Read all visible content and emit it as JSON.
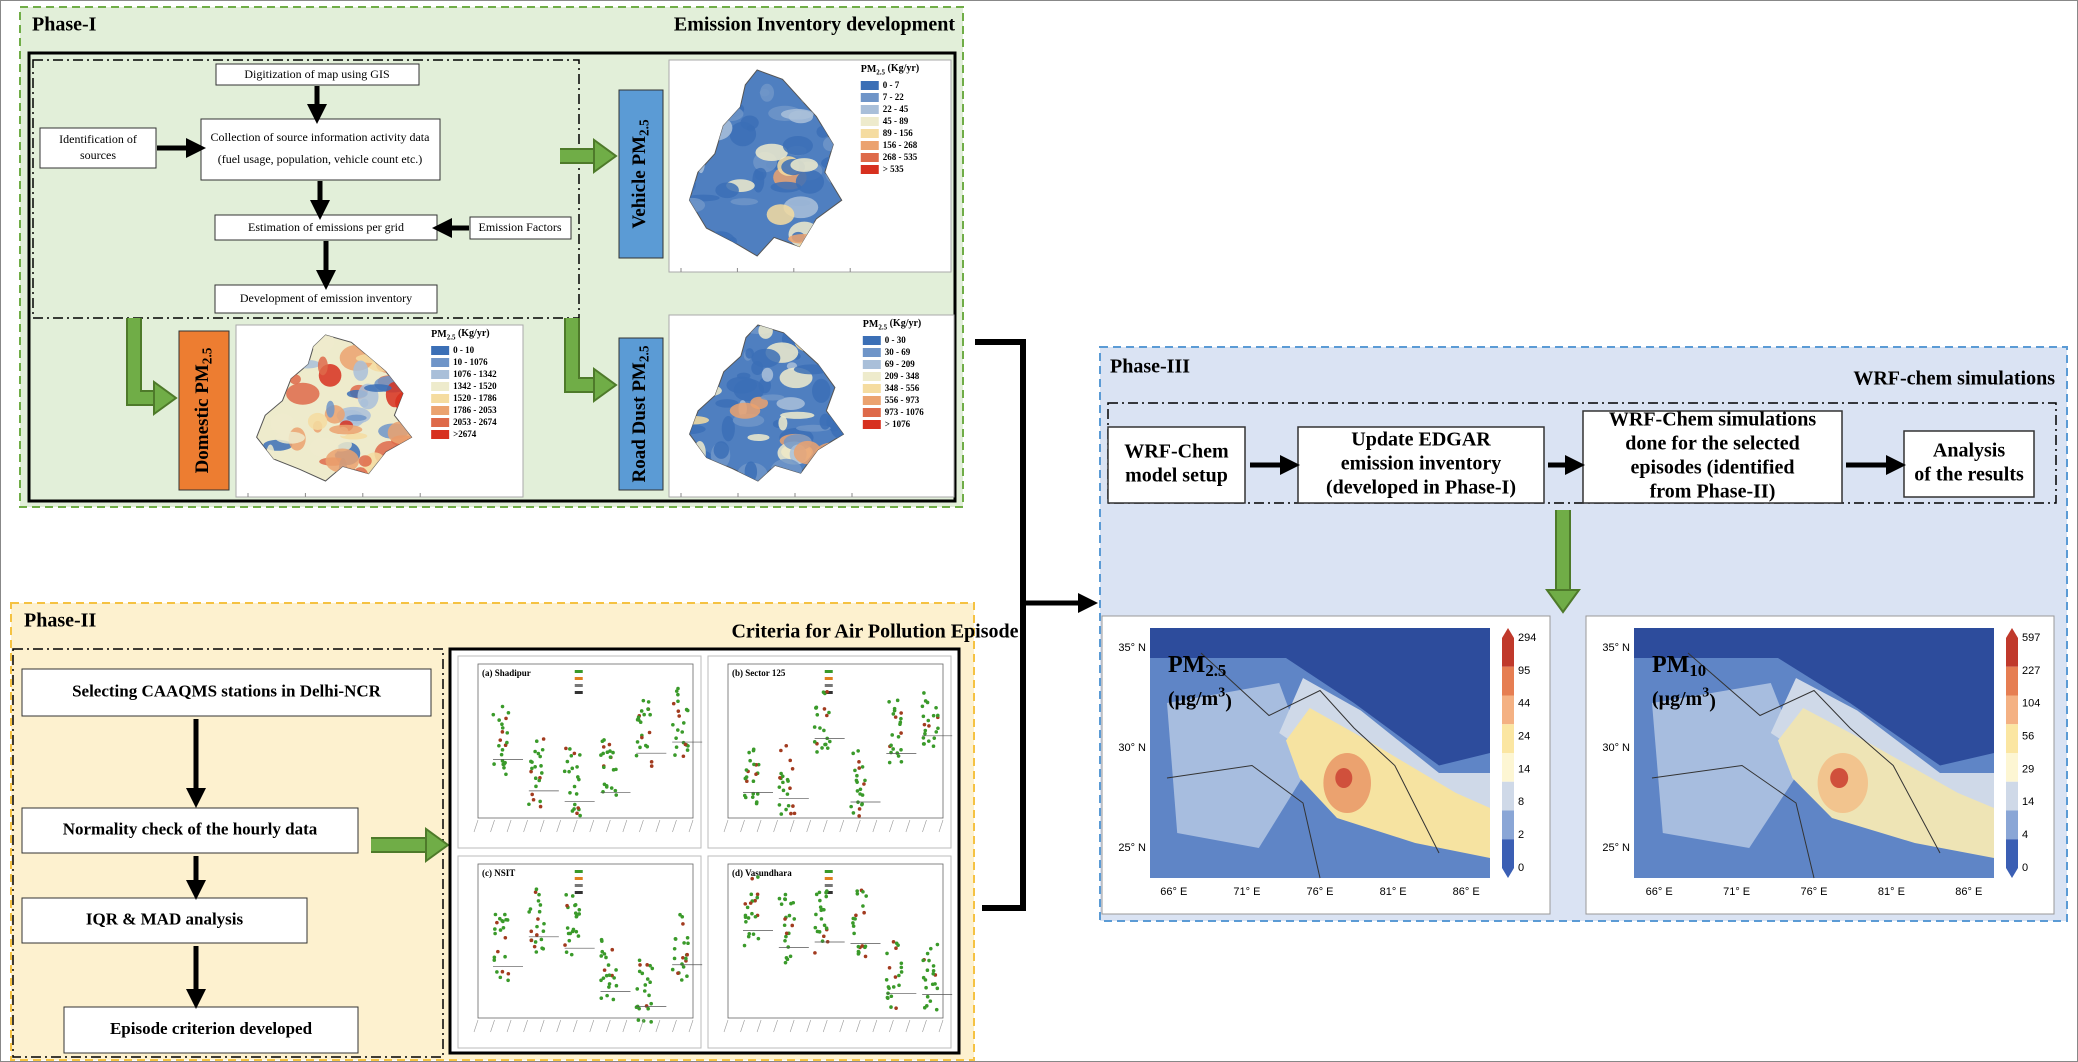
{
  "phase1": {
    "label": "Phase-I",
    "title": "Emission Inventory development",
    "digitization": "Digitization of map using GIS",
    "identification": [
      "Identification of",
      "sources"
    ],
    "collection": [
      "Collection of source information activity data",
      "(fuel usage, population, vehicle count etc.)"
    ],
    "estimation": "Estimation of emissions per grid",
    "factors": "Emission Factors",
    "development": "Development of emission inventory",
    "maps": [
      {
        "label": {
          "text": "Vehicle PM",
          "sub": "2.5"
        },
        "legend_title": {
          "text": "PM",
          "sub": "2.5",
          "tail": " (Kg/yr)"
        },
        "legend": [
          "0 - 7",
          "7 - 22",
          "22 - 45",
          "45 - 89",
          "89 - 156",
          "156 - 268",
          "268 - 535",
          "> 535"
        ]
      },
      {
        "label": {
          "text": "Domestic PM",
          "sub": "2.5"
        },
        "legend_title": {
          "text": "PM",
          "sub": "2.5",
          "tail": " (Kg/yr)"
        },
        "legend": [
          "0 - 10",
          "10 - 1076",
          "1076 - 1342",
          "1342 - 1520",
          "1520 - 1786",
          "1786 - 2053",
          "2053 - 2674",
          ">2674"
        ]
      },
      {
        "label": {
          "text": "Road Dust PM",
          "sub": "2.5"
        },
        "legend_title": {
          "text": "PM",
          "sub": "2.5",
          "tail": " (Kg/yr)"
        },
        "legend": [
          "0 - 30",
          "30 - 69",
          "69 - 209",
          "209 - 348",
          "348 - 556",
          "556 - 973",
          "973 - 1076",
          "> 1076"
        ]
      }
    ]
  },
  "phase2": {
    "label": "Phase-II",
    "title": "Criteria for Air Pollution Episode",
    "steps": [
      "Selecting CAAQMS stations in Delhi-NCR",
      "Normality check of the hourly data",
      "IQR & MAD analysis",
      "Episode criterion developed"
    ],
    "panels": [
      "(a) Shadipur",
      "(b) Sector 125",
      "(c) NSIT",
      "(d) Vasundhara"
    ]
  },
  "phase3": {
    "label": "Phase-III",
    "title": "WRF-chem simulations",
    "steps": [
      [
        "WRF-Chem",
        "model setup"
      ],
      [
        "Update EDGAR",
        "emission inventory",
        "(developed in Phase-I)"
      ],
      [
        "WRF-Chem simulations",
        "done for the selected",
        "episodes (identified",
        "from Phase-II)"
      ],
      [
        "Analysis",
        "of the results"
      ]
    ],
    "maps": [
      {
        "label": {
          "text": "PM",
          "sub": "2.5"
        },
        "unit": {
          "text": "(μg/m",
          "sup": "3",
          "tail": ")"
        },
        "colorbar": [
          294,
          95,
          44,
          24,
          14,
          8,
          2,
          0
        ]
      },
      {
        "label": {
          "text": "PM",
          "sub": "10"
        },
        "unit": {
          "text": "(μg/m",
          "sup": "3",
          "tail": ")"
        },
        "colorbar": [
          597,
          227,
          104,
          56,
          29,
          14,
          4,
          0
        ]
      }
    ],
    "lat": [
      "35° N",
      "30° N",
      "25° N"
    ],
    "lon": [
      "66° E",
      "71° E",
      "76° E",
      "81° E",
      "86° E"
    ]
  }
}
